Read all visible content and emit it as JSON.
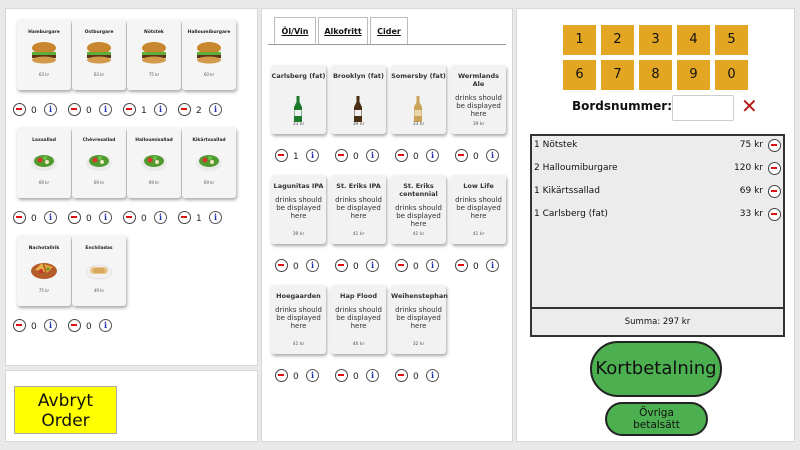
{
  "food": [
    {
      "name": "Hamburgare",
      "price": "63 kr",
      "qty": "0",
      "img": "burger"
    },
    {
      "name": "Ostburgare",
      "price": "63 kr",
      "qty": "0",
      "img": "burger"
    },
    {
      "name": "Nötstek",
      "price": "75 kr",
      "qty": "1",
      "img": "burger"
    },
    {
      "name": "Halloumiburgare",
      "price": "60 kr",
      "qty": "2",
      "img": "burger"
    },
    {
      "name": "Laxsallad",
      "price": "69 kr",
      "qty": "0",
      "img": "salad"
    },
    {
      "name": "Chèvresallad",
      "price": "69 kr",
      "qty": "0",
      "img": "salad"
    },
    {
      "name": "Halloumisallad",
      "price": "69 kr",
      "qty": "0",
      "img": "salad"
    },
    {
      "name": "Kikärtssallad",
      "price": "69 kr",
      "qty": "1",
      "img": "salad"
    },
    {
      "name": "Nachotallrik",
      "price": "75 kr",
      "qty": "0",
      "img": "nacho"
    },
    {
      "name": "Enchiladas",
      "price": "49 kr",
      "qty": "0",
      "img": "wrap"
    }
  ],
  "cancel_label": "Avbryt Order",
  "tabs": [
    "Öl/Vin",
    "Alkofritt",
    "Cider"
  ],
  "drinks": [
    {
      "name": "Carlsberg (fat)",
      "desc": "",
      "price": "33 kr",
      "qty": "1",
      "bottle": "green"
    },
    {
      "name": "Brooklyn (fat)",
      "desc": "",
      "price": "39 kr",
      "qty": "0",
      "bottle": "brown"
    },
    {
      "name": "Somersby (fat)",
      "desc": "",
      "price": "33 kr",
      "qty": "0",
      "bottle": "cider"
    },
    {
      "name": "Wermlands Ale",
      "desc": "drinks should be displayed here",
      "price": "39 kr",
      "qty": "0",
      "bottle": ""
    },
    {
      "name": "Lagunitas IPA",
      "desc": "drinks should be displayed here",
      "price": "39 kr",
      "qty": "0",
      "bottle": ""
    },
    {
      "name": "St. Eriks IPA",
      "desc": "drinks should be displayed here",
      "price": "41 kr",
      "qty": "0",
      "bottle": ""
    },
    {
      "name": "St. Eriks centennial",
      "desc": "drinks should be displayed here",
      "price": "41 kr",
      "qty": "0",
      "bottle": ""
    },
    {
      "name": "Low Life",
      "desc": "drinks should be displayed here",
      "price": "41 kr",
      "qty": "0",
      "bottle": ""
    },
    {
      "name": "Hoegaarden",
      "desc": "drinks should be displayed here",
      "price": "41 kr",
      "qty": "0",
      "bottle": ""
    },
    {
      "name": "Hap Flood",
      "desc": "drinks should be displayed here",
      "price": "46 kr",
      "qty": "0",
      "bottle": ""
    },
    {
      "name": "Weihenstephan",
      "desc": "drinks should be displayed here",
      "price": "32 kr",
      "qty": "0",
      "bottle": ""
    }
  ],
  "keypad": [
    "1",
    "2",
    "3",
    "4",
    "5",
    "6",
    "7",
    "8",
    "9",
    "0"
  ],
  "table_label": "Bordsnummer:",
  "table_value": "",
  "clear_symbol": "✕",
  "order_items": [
    {
      "text": "1 Nötstek",
      "price": "75 kr"
    },
    {
      "text": "2 Halloumiburgare",
      "price": "120 kr"
    },
    {
      "text": "1 Kikärtssallad",
      "price": "69 kr"
    },
    {
      "text": "1 Carlsberg (fat)",
      "price": "33 kr"
    }
  ],
  "sum_label": "Summa: 297 kr",
  "card_pay_label": "Kortbetalning",
  "other_pay_label": "Övriga betalsätt",
  "info_symbol": "i",
  "colors": {
    "accent_yellow": "#ffff00",
    "keypad": "#e3a623",
    "pay_green": "#4caf50",
    "clear_red": "#b51a1a"
  }
}
